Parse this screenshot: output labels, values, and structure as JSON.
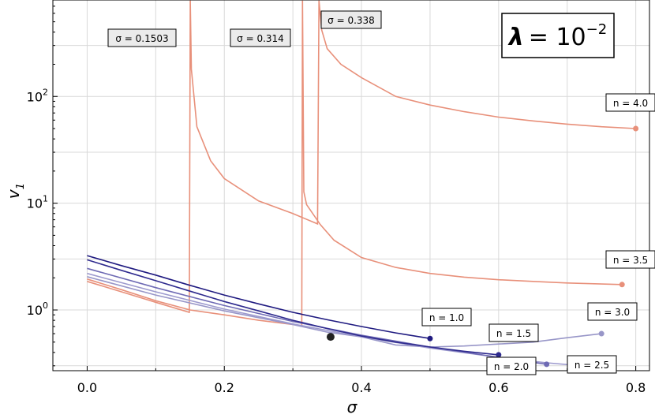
{
  "chart_data": {
    "type": "line",
    "yscale": "log",
    "xlim": [
      -0.05,
      0.82
    ],
    "ylim": [
      0.27,
      800
    ],
    "grid": true,
    "xlabel": "σ",
    "ylabel_main": "v",
    "ylabel_sub": "1",
    "x_ticks": [
      0.0,
      0.2,
      0.4,
      0.6,
      0.8
    ],
    "x_tick_labels": [
      "0.0",
      "0.2",
      "0.4",
      "0.6",
      "0.8"
    ],
    "y_ticks": [
      1,
      10,
      100
    ],
    "y_tick_labels": [
      {
        "base": "10",
        "exp": "0"
      },
      {
        "base": "10",
        "exp": "1"
      },
      {
        "base": "10",
        "exp": "2"
      }
    ],
    "title_box": {
      "lambda": "λ",
      "eq": "= 10",
      "exp": "−2"
    },
    "series": [
      {
        "label": "n = 1.0",
        "color": "#1f1a80",
        "points": [
          [
            0,
            3.23
          ],
          [
            0.05,
            2.6
          ],
          [
            0.1,
            2.12
          ],
          [
            0.15,
            1.7
          ],
          [
            0.2,
            1.38
          ],
          [
            0.25,
            1.14
          ],
          [
            0.3,
            0.95
          ],
          [
            0.35,
            0.81
          ],
          [
            0.4,
            0.7
          ],
          [
            0.45,
            0.61
          ],
          [
            0.5,
            0.54
          ]
        ]
      },
      {
        "label": "n = 1.5",
        "color": "#2e2a8e",
        "points": [
          [
            0,
            2.95
          ],
          [
            0.05,
            2.35
          ],
          [
            0.1,
            1.88
          ],
          [
            0.15,
            1.5
          ],
          [
            0.2,
            1.2
          ],
          [
            0.25,
            0.98
          ],
          [
            0.3,
            0.8
          ],
          [
            0.35,
            0.67
          ],
          [
            0.4,
            0.57
          ],
          [
            0.45,
            0.5
          ],
          [
            0.5,
            0.45
          ],
          [
            0.55,
            0.41
          ],
          [
            0.6,
            0.38
          ]
        ]
      },
      {
        "label": "n = 2.0",
        "color": "#6e6ab4",
        "points": [
          [
            0,
            2.45
          ],
          [
            0.1,
            1.62
          ],
          [
            0.2,
            1.1
          ],
          [
            0.3,
            0.78
          ],
          [
            0.4,
            0.58
          ],
          [
            0.5,
            0.45
          ],
          [
            0.6,
            0.36
          ],
          [
            0.67,
            0.31
          ]
        ]
      },
      {
        "label": "n = 2.5",
        "color": "#9d9ace",
        "points": [
          [
            0,
            2.2
          ],
          [
            0.1,
            1.48
          ],
          [
            0.2,
            1.02
          ],
          [
            0.3,
            0.74
          ],
          [
            0.4,
            0.56
          ],
          [
            0.5,
            0.44
          ],
          [
            0.6,
            0.36
          ],
          [
            0.67,
            0.32
          ],
          [
            0.72,
            0.3
          ]
        ]
      },
      {
        "label": "n = 3.0",
        "color": "#9896c8",
        "points": [
          [
            0,
            2.05
          ],
          [
            0.1,
            1.38
          ],
          [
            0.2,
            0.98
          ],
          [
            0.3,
            0.73
          ],
          [
            0.35,
            0.62
          ],
          [
            0.4,
            0.56
          ],
          [
            0.45,
            0.47
          ],
          [
            0.5,
            0.45
          ],
          [
            0.55,
            0.46
          ],
          [
            0.6,
            0.48
          ],
          [
            0.65,
            0.5
          ],
          [
            0.7,
            0.55
          ],
          [
            0.75,
            0.6
          ]
        ]
      },
      {
        "label": "n = 3.5",
        "color": "#e8907a",
        "points": [
          [
            0,
            1.95
          ],
          [
            0.05,
            1.55
          ],
          [
            0.1,
            1.22
          ],
          [
            0.15,
            1.0
          ],
          [
            0.2,
            0.9
          ],
          [
            0.25,
            0.8
          ],
          [
            0.3,
            0.73
          ],
          [
            0.313,
            0.71
          ],
          [
            0.314,
            790
          ],
          [
            0.316,
            12.8
          ],
          [
            0.32,
            9.7
          ],
          [
            0.34,
            6.3
          ],
          [
            0.36,
            4.5
          ],
          [
            0.4,
            3.1
          ],
          [
            0.45,
            2.5
          ],
          [
            0.5,
            2.2
          ],
          [
            0.55,
            2.03
          ],
          [
            0.6,
            1.92
          ],
          [
            0.65,
            1.85
          ],
          [
            0.7,
            1.79
          ],
          [
            0.75,
            1.75
          ],
          [
            0.78,
            1.73
          ]
        ]
      },
      {
        "label": "n = 4.0",
        "color": "#e8907a",
        "points": [
          [
            0,
            1.85
          ],
          [
            0.05,
            1.48
          ],
          [
            0.1,
            1.18
          ],
          [
            0.149,
            0.95
          ],
          [
            0.1503,
            790
          ],
          [
            0.152,
            180
          ],
          [
            0.16,
            52
          ],
          [
            0.18,
            25
          ],
          [
            0.2,
            17
          ],
          [
            0.25,
            10.5
          ],
          [
            0.3,
            8.0
          ],
          [
            0.336,
            6.4
          ],
          [
            0.338,
            790
          ],
          [
            0.342,
            420
          ],
          [
            0.35,
            280
          ],
          [
            0.37,
            200
          ],
          [
            0.4,
            150
          ],
          [
            0.45,
            100
          ],
          [
            0.5,
            83
          ],
          [
            0.55,
            72
          ],
          [
            0.6,
            64
          ],
          [
            0.65,
            59
          ],
          [
            0.7,
            55
          ],
          [
            0.75,
            52
          ],
          [
            0.8,
            50
          ]
        ]
      }
    ],
    "series_callouts": [
      "n = 1.0",
      "n = 1.5",
      "n = 2.0",
      "n = 2.5",
      "n = 3.0",
      "n = 3.5",
      "n = 4.0"
    ],
    "threshold_labels": [
      "σ = 0.1503",
      "σ = 0.314",
      "σ = 0.338"
    ],
    "marker_point": {
      "x": 0.355,
      "y": 0.56
    }
  }
}
